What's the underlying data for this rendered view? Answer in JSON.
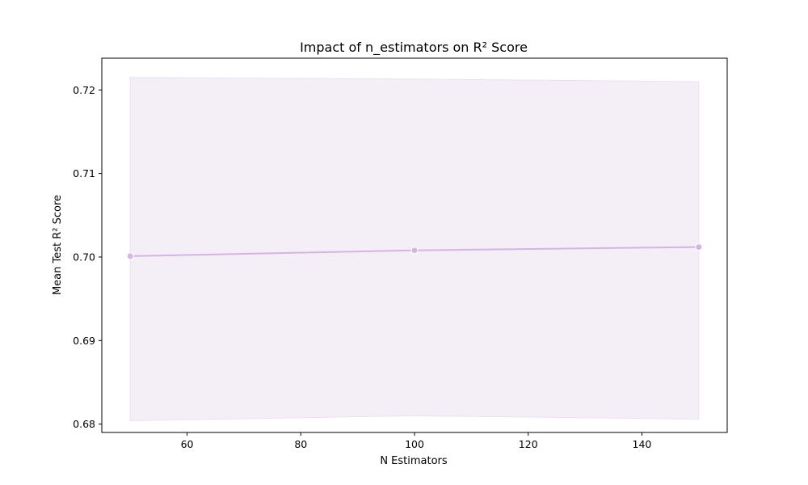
{
  "chart_data": {
    "type": "line",
    "title": "Impact of n_estimators on R² Score",
    "xlabel": "N Estimators",
    "ylabel": "Mean Test R² Score",
    "xlim": [
      45,
      155
    ],
    "ylim": [
      0.679,
      0.7238
    ],
    "x_ticks": [
      60,
      80,
      100,
      120,
      140
    ],
    "y_ticks": [
      0.68,
      0.69,
      0.7,
      0.71,
      0.72
    ],
    "x_tick_labels": [
      "60",
      "80",
      "100",
      "120",
      "140"
    ],
    "y_tick_labels": [
      "0.68",
      "0.69",
      "0.70",
      "0.71",
      "0.72"
    ],
    "grid": false,
    "legend": "none",
    "series": [
      {
        "x": [
          50,
          100,
          150
        ],
        "y": [
          0.7001,
          0.7008,
          0.7012
        ],
        "band_upper": [
          0.7215,
          0.7213,
          0.721
        ],
        "band_lower": [
          0.6804,
          0.681,
          0.6806
        ],
        "color": "#d6b4e2",
        "band_color": "#f4eef6"
      }
    ]
  }
}
